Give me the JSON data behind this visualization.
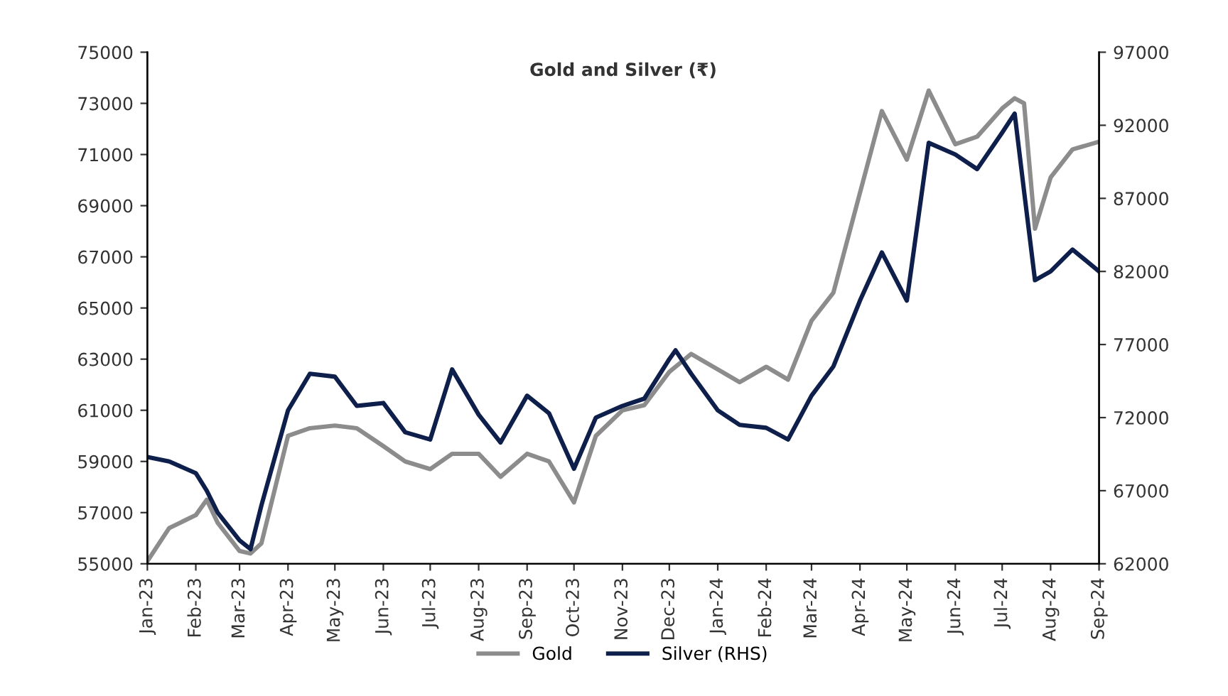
{
  "chart_data": {
    "type": "line",
    "title": "Gold and Silver (₹)",
    "x": [
      "2023-01-01",
      "2023-01-15",
      "2023-02-01",
      "2023-02-08",
      "2023-02-15",
      "2023-03-01",
      "2023-03-08",
      "2023-03-15",
      "2023-04-01",
      "2023-04-15",
      "2023-05-01",
      "2023-05-15",
      "2023-06-01",
      "2023-06-15",
      "2023-07-01",
      "2023-07-15",
      "2023-08-01",
      "2023-08-15",
      "2023-09-01",
      "2023-09-15",
      "2023-10-01",
      "2023-10-15",
      "2023-11-01",
      "2023-11-15",
      "2023-12-01",
      "2023-12-05",
      "2023-12-15",
      "2024-01-01",
      "2024-01-15",
      "2024-02-01",
      "2024-02-15",
      "2024-03-01",
      "2024-03-15",
      "2024-04-01",
      "2024-04-15",
      "2024-05-01",
      "2024-05-15",
      "2024-06-01",
      "2024-06-15",
      "2024-07-01",
      "2024-07-09",
      "2024-07-15",
      "2024-07-22",
      "2024-08-01",
      "2024-08-15",
      "2024-09-01"
    ],
    "series": [
      {
        "name": "Gold",
        "color": "#8c8c8c",
        "values": [
          55100,
          56400,
          56900,
          57500,
          56600,
          55500,
          55400,
          55800,
          60000,
          60300,
          60400,
          60300,
          59600,
          59000,
          58700,
          59300,
          59300,
          58400,
          59300,
          59000,
          57400,
          60000,
          61000,
          61200,
          62500,
          62700,
          63200,
          62600,
          62100,
          62700,
          62200,
          64500,
          65600,
          69500,
          72700,
          70800,
          73500,
          71400,
          71700,
          72800,
          73200,
          73000,
          68100,
          70100,
          71200,
          71500
        ]
      },
      {
        "name": "Silver (RHS)",
        "color": "#0d1f4a",
        "axis": "y2",
        "values": [
          69300,
          69000,
          68200,
          67000,
          65500,
          63600,
          63000,
          66000,
          72500,
          75000,
          74800,
          72800,
          73000,
          71000,
          70500,
          75300,
          72200,
          70300,
          73500,
          72300,
          68500,
          72000,
          72800,
          73300,
          76000,
          76600,
          75000,
          72500,
          71500,
          71300,
          70500,
          73500,
          75500,
          80000,
          83300,
          80000,
          90800,
          90000,
          89000,
          91500,
          92800,
          87500,
          81400,
          82000,
          83500,
          82000
        ]
      }
    ],
    "xlim": [
      "2023-01-01",
      "2024-09-01"
    ],
    "xticks": [
      {
        "value": "2023-01-01",
        "label": "Jan-23"
      },
      {
        "value": "2023-02-01",
        "label": "Feb-23"
      },
      {
        "value": "2023-03-01",
        "label": "Mar-23"
      },
      {
        "value": "2023-04-01",
        "label": "Apr-23"
      },
      {
        "value": "2023-05-01",
        "label": "May-23"
      },
      {
        "value": "2023-06-01",
        "label": "Jun-23"
      },
      {
        "value": "2023-07-01",
        "label": "Jul-23"
      },
      {
        "value": "2023-08-01",
        "label": "Aug-23"
      },
      {
        "value": "2023-09-01",
        "label": "Sep-23"
      },
      {
        "value": "2023-10-01",
        "label": "Oct-23"
      },
      {
        "value": "2023-11-01",
        "label": "Nov-23"
      },
      {
        "value": "2023-12-01",
        "label": "Dec-23"
      },
      {
        "value": "2024-01-01",
        "label": "Jan-24"
      },
      {
        "value": "2024-02-01",
        "label": "Feb-24"
      },
      {
        "value": "2024-03-01",
        "label": "Mar-24"
      },
      {
        "value": "2024-04-01",
        "label": "Apr-24"
      },
      {
        "value": "2024-05-01",
        "label": "May-24"
      },
      {
        "value": "2024-06-01",
        "label": "Jun-24"
      },
      {
        "value": "2024-07-01",
        "label": "Jul-24"
      },
      {
        "value": "2024-08-01",
        "label": "Aug-24"
      },
      {
        "value": "2024-09-01",
        "label": "Sep-24"
      }
    ],
    "ylim": [
      55000,
      75000
    ],
    "yticks": [
      55000,
      57000,
      59000,
      61000,
      63000,
      65000,
      67000,
      69000,
      71000,
      73000,
      75000
    ],
    "y2lim": [
      62000,
      97000
    ],
    "y2ticks": [
      62000,
      67000,
      72000,
      77000,
      82000,
      87000,
      92000,
      97000
    ],
    "grid": false,
    "legend": "bottom",
    "marker": "none",
    "line_style": "solid"
  }
}
